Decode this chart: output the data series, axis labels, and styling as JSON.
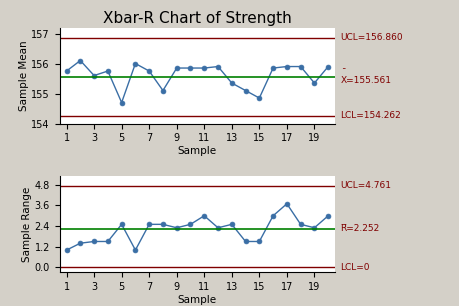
{
  "title": "Xbar-R Chart of Strength",
  "xbar_data": [
    155.75,
    156.1,
    155.6,
    155.75,
    154.7,
    156.0,
    155.75,
    155.1,
    155.85,
    155.85,
    155.85,
    155.9,
    155.35,
    155.1,
    154.85,
    155.85,
    155.9,
    155.9,
    155.35,
    155.9
  ],
  "range_data": [
    1.0,
    1.4,
    1.5,
    1.5,
    2.5,
    1.0,
    2.5,
    2.5,
    2.3,
    2.5,
    3.0,
    2.3,
    2.5,
    1.5,
    1.5,
    3.0,
    3.7,
    2.5,
    2.3,
    3.0
  ],
  "samples": [
    1,
    2,
    3,
    4,
    5,
    6,
    7,
    8,
    9,
    10,
    11,
    12,
    13,
    14,
    15,
    16,
    17,
    18,
    19,
    20
  ],
  "xbar_ucl": 156.86,
  "xbar_cl": 155.561,
  "xbar_lcl": 154.262,
  "r_ucl": 4.761,
  "r_cl": 2.252,
  "r_lcl": 0,
  "xbar_ylim": [
    154.0,
    157.2
  ],
  "r_ylim": [
    -0.3,
    5.3
  ],
  "xbar_yticks": [
    154,
    155,
    156,
    157
  ],
  "r_yticks": [
    0.0,
    1.2,
    2.4,
    3.6,
    4.8
  ],
  "bg_color": "#d4d0c8",
  "plot_bg": "#ffffff",
  "line_color": "#3a6ea5",
  "cl_color": "#008000",
  "limit_color": "#800000",
  "annot_color": "#800000",
  "xlabel": "Sample",
  "xbar_ylabel": "Sample Mean",
  "r_ylabel": "Sample Range",
  "line_width": 1.0,
  "marker": "o",
  "marker_size": 3.5,
  "annot_fontsize": 6.5,
  "label_fontsize": 7.5,
  "tick_fontsize": 7,
  "title_fontsize": 11
}
